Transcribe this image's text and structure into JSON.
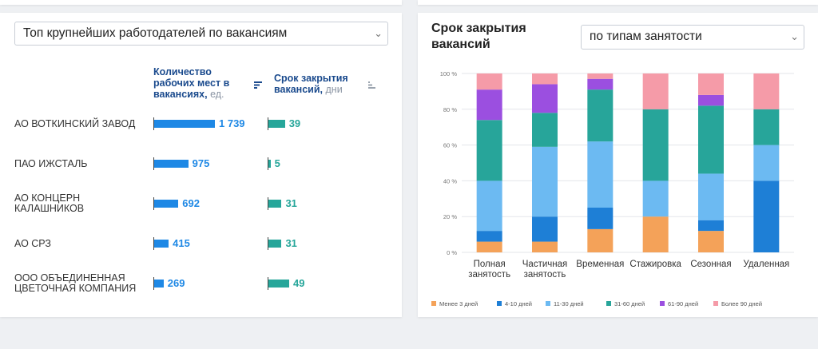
{
  "left": {
    "dropdown": "Топ крупнейших работодателей по вакансиям",
    "col1": {
      "title": "Количество рабочих мест в вакансиях,",
      "unit": "ед."
    },
    "col2": {
      "title": "Срок закрытия вакансий,",
      "unit": "дни"
    },
    "rows": [
      {
        "name": "АО ВОТКИНСКИЙ ЗАВОД",
        "jobs": 1739,
        "jobs_label": "1 739",
        "days": 39,
        "days_label": "39"
      },
      {
        "name": "ПАО ИЖСТАЛЬ",
        "jobs": 975,
        "jobs_label": "975",
        "days": 5,
        "days_label": "5"
      },
      {
        "name": "АО КОНЦЕРН КАЛАШНИКОВ",
        "jobs": 692,
        "jobs_label": "692",
        "days": 31,
        "days_label": "31"
      },
      {
        "name": "АО СРЗ",
        "jobs": 415,
        "jobs_label": "415",
        "days": 31,
        "days_label": "31"
      },
      {
        "name": "ООО ОБЪЕДИНЕННАЯ ЦВЕТОЧНАЯ КОМПАНИЯ",
        "jobs": 269,
        "jobs_label": "269",
        "days": 49,
        "days_label": "49"
      }
    ]
  },
  "right": {
    "title": "Срок закрытия вакансий",
    "dropdown": "по типам занятости"
  },
  "colors": {
    "blue": "#1e88e5",
    "teal": "#26a69a",
    "s1": "#f4a259",
    "s2": "#1e7fd6",
    "s3": "#6cbaf2",
    "s4": "#27a59a",
    "s5": "#9b4fe0",
    "s6": "#f59ba8"
  },
  "chart_data": {
    "type": "bar",
    "stacked": true,
    "percent": true,
    "categories": [
      "Полная занятость",
      "Частичная занятость",
      "Временная",
      "Стажировка",
      "Сезонная",
      "Удаленная"
    ],
    "yticks": [
      "0 %",
      "20 %",
      "40 %",
      "60 %",
      "80 %",
      "100 %"
    ],
    "ylim": [
      0,
      100
    ],
    "legend_position": "bottom",
    "series": [
      {
        "name": "Менее 3 дней",
        "color": "#f4a259",
        "values": [
          6,
          6,
          13,
          20,
          12,
          0
        ]
      },
      {
        "name": "4-10 дней",
        "color": "#1e7fd6",
        "values": [
          6,
          14,
          12,
          0,
          6,
          40
        ]
      },
      {
        "name": "11-30 дней",
        "color": "#6cbaf2",
        "values": [
          28,
          39,
          37,
          20,
          26,
          20
        ]
      },
      {
        "name": "31-60 дней",
        "color": "#27a59a",
        "values": [
          34,
          19,
          29,
          40,
          38,
          20
        ]
      },
      {
        "name": "61-90 дней",
        "color": "#9b4fe0",
        "values": [
          17,
          16,
          6,
          0,
          6,
          0
        ]
      },
      {
        "name": "Более 90 дней",
        "color": "#f59ba8",
        "values": [
          9,
          6,
          3,
          20,
          12,
          20
        ]
      }
    ]
  }
}
